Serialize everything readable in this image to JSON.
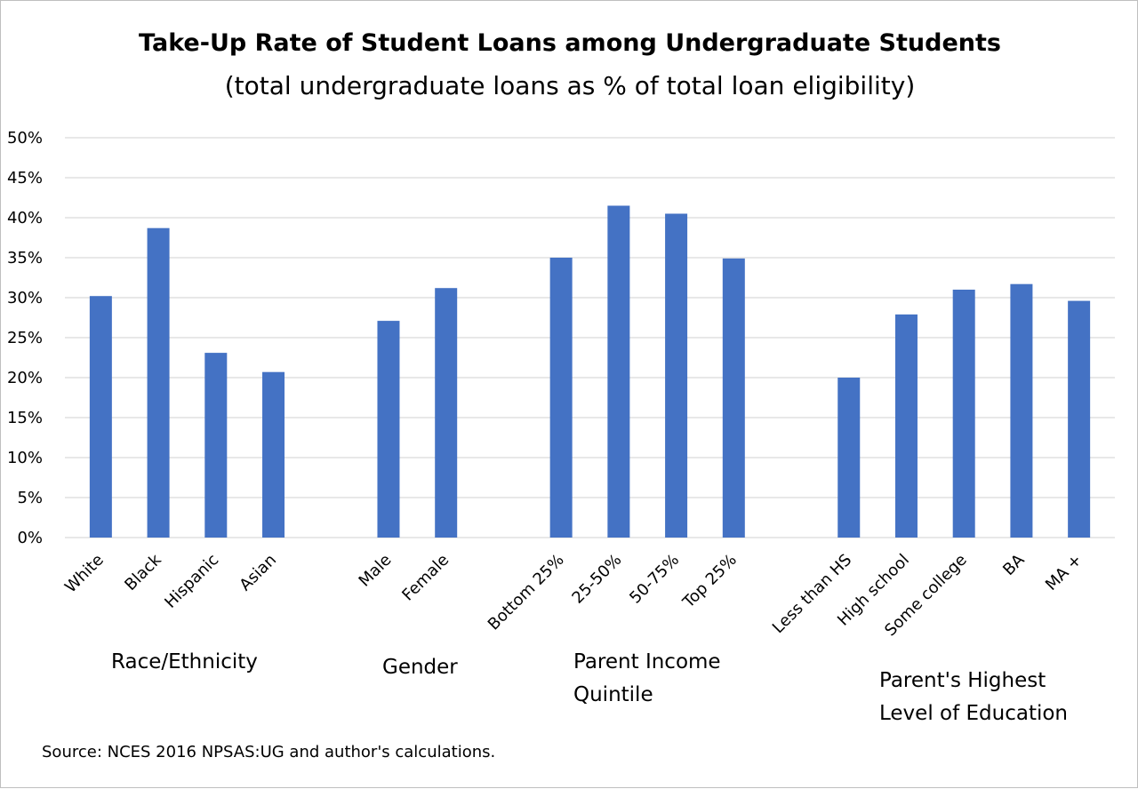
{
  "chart_data": {
    "type": "bar",
    "title": "Take-Up Rate of Student Loans among Undergraduate Students",
    "subtitle": "(total undergraduate loans as % of total loan eligibility)",
    "ylim": [
      0,
      50
    ],
    "yticks": [
      "0%",
      "5%",
      "10%",
      "15%",
      "20%",
      "25%",
      "30%",
      "35%",
      "40%",
      "45%",
      "50%"
    ],
    "grid": true,
    "bar_color": "#4472C4",
    "groups": [
      {
        "label_lines": [
          "Race/Ethnicity"
        ],
        "categories": [
          "White",
          "Black",
          "Hispanic",
          "Asian"
        ],
        "values": [
          30.2,
          38.7,
          23.1,
          20.7
        ]
      },
      {
        "label_lines": [
          "Gender"
        ],
        "categories": [
          "Male",
          "Female"
        ],
        "values": [
          27.1,
          31.2
        ]
      },
      {
        "label_lines": [
          "Parent Income",
          "Quintile"
        ],
        "categories": [
          "Bottom 25%",
          "25-50%",
          "50-75%",
          "Top 25%"
        ],
        "values": [
          35.0,
          41.5,
          40.5,
          34.9
        ]
      },
      {
        "label_lines": [
          "Parent's Highest",
          "Level of Education"
        ],
        "categories": [
          "Less than HS",
          "High school",
          "Some college",
          "BA",
          "MA +"
        ],
        "values": [
          20.0,
          27.9,
          31.0,
          31.7,
          29.6
        ]
      }
    ],
    "source": "Source: NCES 2016 NPSAS:UG and author's calculations."
  }
}
